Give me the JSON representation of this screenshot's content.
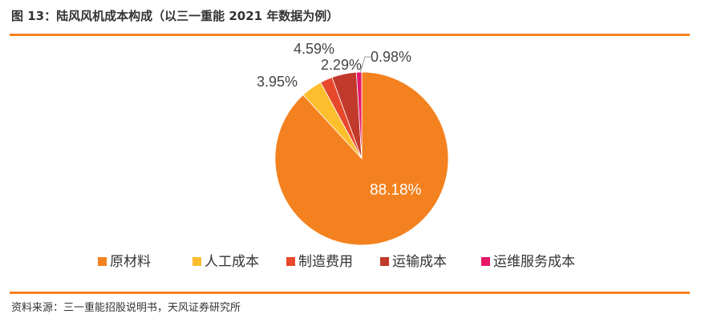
{
  "header": {
    "title": "图 13：陆风风机成本构成（以三一重能 2021 年数据为例）",
    "source": "资料来源：三一重能招股说明书，天风证券研究所"
  },
  "colors": {
    "accent": "#F4811F"
  },
  "chart_data": {
    "type": "pie",
    "title": "图 13：陆风风机成本构成（以三一重能 2021 年数据为例）",
    "unit": "%",
    "legend_position": "bottom",
    "slices": [
      {
        "name": "原材料",
        "value": 88.18,
        "label": "88.18%",
        "color": "#F4811F"
      },
      {
        "name": "人工成本",
        "value": 3.95,
        "label": "3.95%",
        "color": "#FCBE2C"
      },
      {
        "name": "制造费用",
        "value": 2.29,
        "label": "2.29%",
        "color": "#E8482C"
      },
      {
        "name": "运输成本",
        "value": 4.59,
        "label": "4.59%",
        "color": "#C0392B"
      },
      {
        "name": "运维服务成本",
        "value": 0.98,
        "label": "0.98%",
        "color": "#E5186A"
      }
    ]
  }
}
